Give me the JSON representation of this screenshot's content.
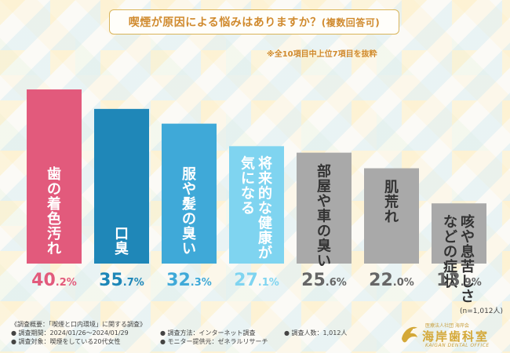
{
  "title": {
    "main": "喫煙が原因による悩みはありますか？",
    "sub": "(複数回答可)"
  },
  "note": "※全10項目中上位7項目を抜粋",
  "n_label": "(n=1,012人)",
  "colors": {
    "accent": "#d08a2e",
    "bar1": "#e25a7c",
    "bar2": "#1f87b8",
    "bar3": "#3fa9d8",
    "bar4": "#7fd4f0",
    "gray": "#a9a9a9"
  },
  "chart_data": {
    "type": "bar",
    "categories": [
      "歯の着色汚れ",
      "口臭",
      "服や髪の臭い",
      "将来的な健康が気になる",
      "部屋や車の臭い",
      "肌荒れ",
      "咳や息苦しさなどの症状"
    ],
    "category_lines": [
      [
        "歯の着色汚れ"
      ],
      [
        "口臭"
      ],
      [
        "服や髪の臭い"
      ],
      [
        "将来的な健康が",
        "気になる"
      ],
      [
        "部屋や車の臭い"
      ],
      [
        "肌荒れ"
      ],
      [
        "咳や息苦しさ",
        "などの症状"
      ]
    ],
    "values": [
      40.2,
      35.7,
      32.3,
      27.1,
      25.6,
      22.0,
      13.9
    ],
    "value_labels": [
      {
        "int": "40",
        "dec": ".2%"
      },
      {
        "int": "35",
        "dec": ".7%"
      },
      {
        "int": "32",
        "dec": ".3%"
      },
      {
        "int": "27",
        "dec": ".1%"
      },
      {
        "int": "25",
        "dec": ".6%"
      },
      {
        "int": "22",
        "dec": ".0%"
      },
      {
        "int": "13",
        "dec": ".9%"
      }
    ],
    "bar_colors": [
      "#e25a7c",
      "#1f87b8",
      "#3fa9d8",
      "#7fd4f0",
      "#a9a9a9",
      "#a9a9a9",
      "#a9a9a9"
    ],
    "value_colors": [
      "#e25a7c",
      "#1f87b8",
      "#3fa9d8",
      "#7fd4f0",
      "#666666",
      "#666666",
      "#666666"
    ],
    "text_colors": [
      "#ffffff",
      "#ffffff",
      "#ffffff",
      "#ffffff",
      "#333333",
      "#333333",
      "#333333"
    ],
    "ylim": [
      0,
      45
    ]
  },
  "footer": {
    "col1": [
      "《調査概要：「喫煙と口内環境」に関する調査》",
      "● 調査期間：2024/01/26～2024/01/29",
      "● 調査対象：喫煙をしている20代女性"
    ],
    "col2": [
      "● 調査方法：インターネット調査",
      "● モニター提供元：ゼネラルリサーチ"
    ],
    "col3": [
      "● 調査人数：1,012人"
    ]
  },
  "logo": {
    "top": "医療法人社団 海岸会",
    "main": "海岸歯科室",
    "sub": "KAIGAN DENTAL OFFICE"
  }
}
